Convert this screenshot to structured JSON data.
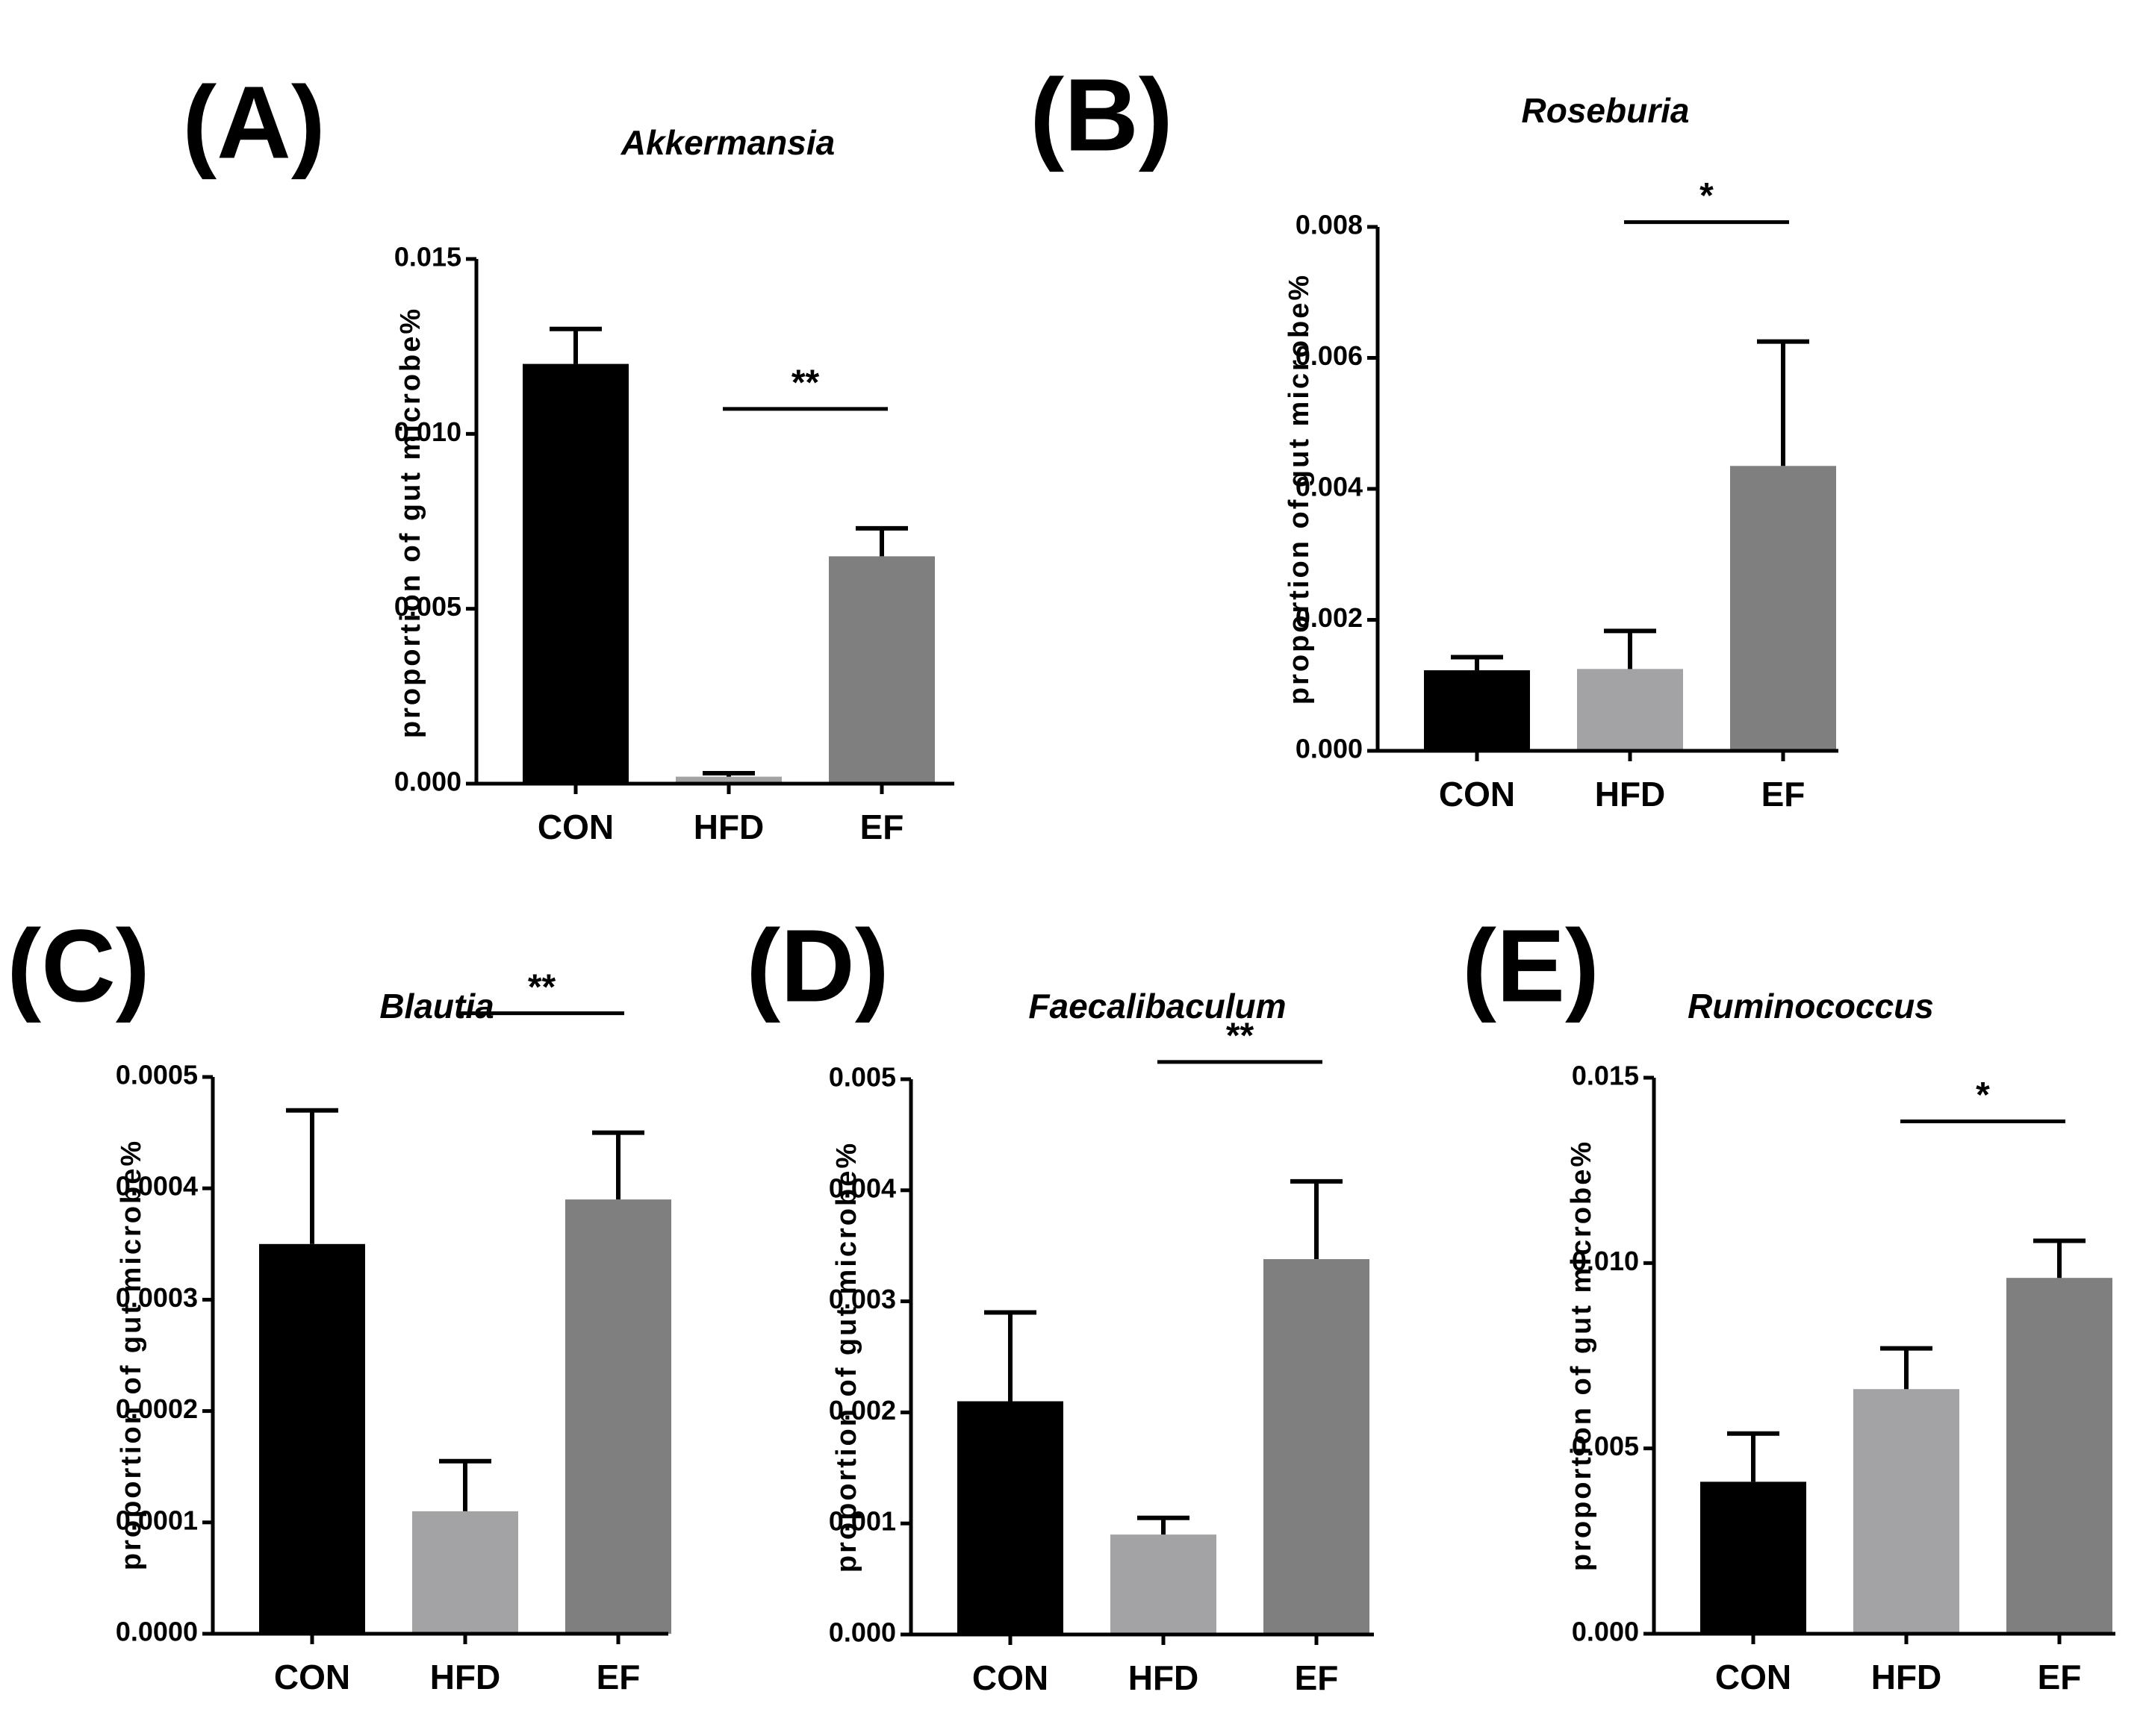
{
  "chart_data": [
    {
      "type": "bar",
      "panel": "(A)",
      "title": "Akkermansia",
      "ylabel": "proportion of gut microbe%",
      "categories": [
        "CON",
        "HFD",
        "EF"
      ],
      "values": [
        0.012,
        0.0002,
        0.0065
      ],
      "errors": [
        0.001,
        0.0001,
        0.0008
      ],
      "colors": [
        "#000000",
        "#a3a3a5",
        "#7f7f7f"
      ],
      "ylim": [
        0,
        0.015
      ],
      "yticks": [
        "0.000",
        "0.005",
        "0.010",
        "0.015"
      ],
      "ytick_values": [
        0,
        0.005,
        0.01,
        0.015
      ],
      "significance": {
        "from": "HFD",
        "to": "EF",
        "label": "**"
      }
    },
    {
      "type": "bar",
      "panel": "(B)",
      "title": "Roseburia",
      "ylabel": "proportion of gut microbe%",
      "categories": [
        "CON",
        "HFD",
        "EF"
      ],
      "values": [
        0.00123,
        0.00125,
        0.00435
      ],
      "errors": [
        0.0002,
        0.00058,
        0.0019
      ],
      "colors": [
        "#000000",
        "#a3a3a5",
        "#7f7f7f"
      ],
      "ylim": [
        0,
        0.008
      ],
      "yticks": [
        "0.000",
        "0.002",
        "0.004",
        "0.006",
        "0.008"
      ],
      "ytick_values": [
        0,
        0.002,
        0.004,
        0.006,
        0.008
      ],
      "significance": {
        "from": "HFD",
        "to": "EF",
        "label": "*"
      }
    },
    {
      "type": "bar",
      "panel": "(C)",
      "title": "Blautia",
      "ylabel": "proportion of gut microbe%",
      "categories": [
        "CON",
        "HFD",
        "EF"
      ],
      "values": [
        0.00035,
        0.00011,
        0.00039
      ],
      "errors": [
        0.00012,
        4.5e-05,
        6e-05
      ],
      "colors": [
        "#000000",
        "#a3a3a5",
        "#7f7f7f"
      ],
      "ylim": [
        0,
        0.0005
      ],
      "yticks": [
        "0.0000",
        "0.0001",
        "0.0002",
        "0.0003",
        "0.0004",
        "0.0005"
      ],
      "ytick_values": [
        0,
        0.0001,
        0.0002,
        0.0003,
        0.0004,
        0.0005
      ],
      "significance": {
        "from": "HFD",
        "to": "EF",
        "label": "**"
      }
    },
    {
      "type": "bar",
      "panel": "(D)",
      "title": "Faecalibaculum",
      "ylabel": "proportion of gut microbe%",
      "categories": [
        "CON",
        "HFD",
        "EF"
      ],
      "values": [
        0.0021,
        0.0009,
        0.00338
      ],
      "errors": [
        0.0008,
        0.00015,
        0.0007
      ],
      "colors": [
        "#000000",
        "#a3a3a5",
        "#7f7f7f"
      ],
      "ylim": [
        0,
        0.005
      ],
      "yticks": [
        "0.000",
        "0.001",
        "0.002",
        "0.003",
        "0.004",
        "0.005"
      ],
      "ytick_values": [
        0,
        0.001,
        0.002,
        0.003,
        0.004,
        0.005
      ],
      "significance": {
        "from": "HFD",
        "to": "EF",
        "label": "**"
      }
    },
    {
      "type": "bar",
      "panel": "(E)",
      "title": "Ruminococcus",
      "ylabel": "proportion of gut microbe%",
      "categories": [
        "CON",
        "HFD",
        "EF"
      ],
      "values": [
        0.0041,
        0.0066,
        0.0096
      ],
      "errors": [
        0.0013,
        0.0011,
        0.001
      ],
      "colors": [
        "#000000",
        "#a3a3a5",
        "#7f7f7f"
      ],
      "ylim": [
        0,
        0.015
      ],
      "yticks": [
        "0.000",
        "0.005",
        "0.010",
        "0.015"
      ],
      "ytick_values": [
        0,
        0.005,
        0.01,
        0.015
      ],
      "significance": {
        "from": "HFD",
        "to": "EF",
        "label": "*"
      }
    }
  ]
}
